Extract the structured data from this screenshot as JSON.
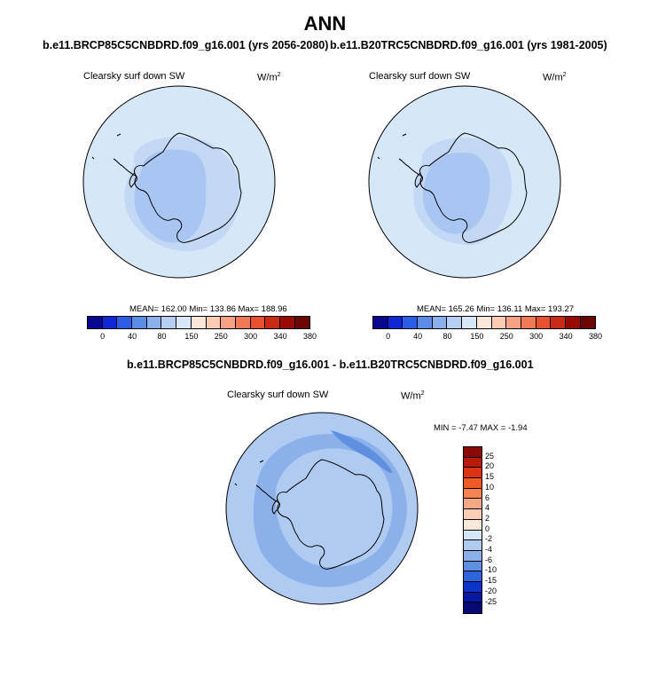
{
  "main_title": "ANN",
  "colors": {
    "ocean_light": "#d6e8f8",
    "band_mid": "#c2d8f4",
    "band_blue": "#a9c6f2",
    "band_deeper": "#8eb3ec",
    "coast": "#000000",
    "diff_base": "#b0cbf2",
    "diff_band": "#8cb0ea",
    "diff_dark": "#5f8fdf"
  },
  "panels": [
    {
      "case": "b.e11.BRCP85C5CNBDRD.f09_g16.001 (yrs 2056-2080)",
      "label": "Clearsky surf down SW",
      "units": "W/m",
      "units_exp": "2",
      "stats": "MEAN= 162.00  Min= 133.86  Max= 188.96"
    },
    {
      "case": "b.e11.B20TRC5CNBDRD.f09_g16.001 (yrs 1981-2005)",
      "label": "Clearsky surf down SW",
      "units": "W/m",
      "units_exp": "2",
      "stats": "MEAN= 165.26  Min= 136.11  Max= 193.27"
    }
  ],
  "diff_panel": {
    "title": "b.e11.BRCP85C5CNBDRD.f09_g16.001 - b.e11.B20TRC5CNBDRD.f09_g16.001",
    "label": "Clearsky surf down SW",
    "units": "W/m",
    "units_exp": "2",
    "stats": "MIN =  -7.47 MAX =  -1.94"
  },
  "chart_data": [
    {
      "type": "heatmap",
      "title": "b.e11.BRCP85C5CNBDRD.f09_g16.001 (yrs 2056-2080)",
      "variable": "Clearsky surf down SW",
      "units": "W/m2",
      "projection": "south polar stereographic",
      "mean": 162.0,
      "min": 133.86,
      "max": 188.96,
      "colorbar_levels": [
        0,
        40,
        80,
        150,
        250,
        300,
        340,
        380
      ],
      "colorbar_colors": [
        "#06088f",
        "#0e26d4",
        "#2b5de6",
        "#5b8de8",
        "#8cb0ec",
        "#b7cff2",
        "#d8e8f8",
        "#fbe7d9",
        "#fbcbb3",
        "#f7a282",
        "#f17a56",
        "#e7512f",
        "#c92c12",
        "#980b04",
        "#6b0603"
      ]
    },
    {
      "type": "heatmap",
      "title": "b.e11.B20TRC5CNBDRD.f09_g16.001 (yrs 1981-2005)",
      "variable": "Clearsky surf down SW",
      "units": "W/m2",
      "projection": "south polar stereographic",
      "mean": 165.26,
      "min": 136.11,
      "max": 193.27,
      "colorbar_levels": [
        0,
        40,
        80,
        150,
        250,
        300,
        340,
        380
      ],
      "colorbar_colors": [
        "#06088f",
        "#0e26d4",
        "#2b5de6",
        "#5b8de8",
        "#8cb0ec",
        "#b7cff2",
        "#d8e8f8",
        "#fbe7d9",
        "#fbcbb3",
        "#f7a282",
        "#f17a56",
        "#e7512f",
        "#c92c12",
        "#980b04",
        "#6b0603"
      ]
    },
    {
      "type": "heatmap",
      "title": "b.e11.BRCP85C5CNBDRD.f09_g16.001 - b.e11.B20TRC5CNBDRD.f09_g16.001",
      "variable": "Clearsky surf down SW",
      "units": "W/m2",
      "projection": "south polar stereographic",
      "min": -7.47,
      "max": -1.94,
      "colorbar_levels": [
        25,
        20,
        15,
        10,
        6,
        4,
        2,
        0,
        -2,
        -4,
        -6,
        -10,
        -15,
        -20,
        -25
      ],
      "colorbar_colors": [
        "#8a0a05",
        "#b81a0c",
        "#da3414",
        "#ef5a25",
        "#f58354",
        "#f8a885",
        "#fccdb6",
        "#fde9dc",
        "#d6e6f8",
        "#b0cbf2",
        "#8cb0ea",
        "#5f8fdf",
        "#2f63db",
        "#0d33c9",
        "#0519a2",
        "#050b73"
      ],
      "colorbar_orientation": "vertical"
    }
  ]
}
